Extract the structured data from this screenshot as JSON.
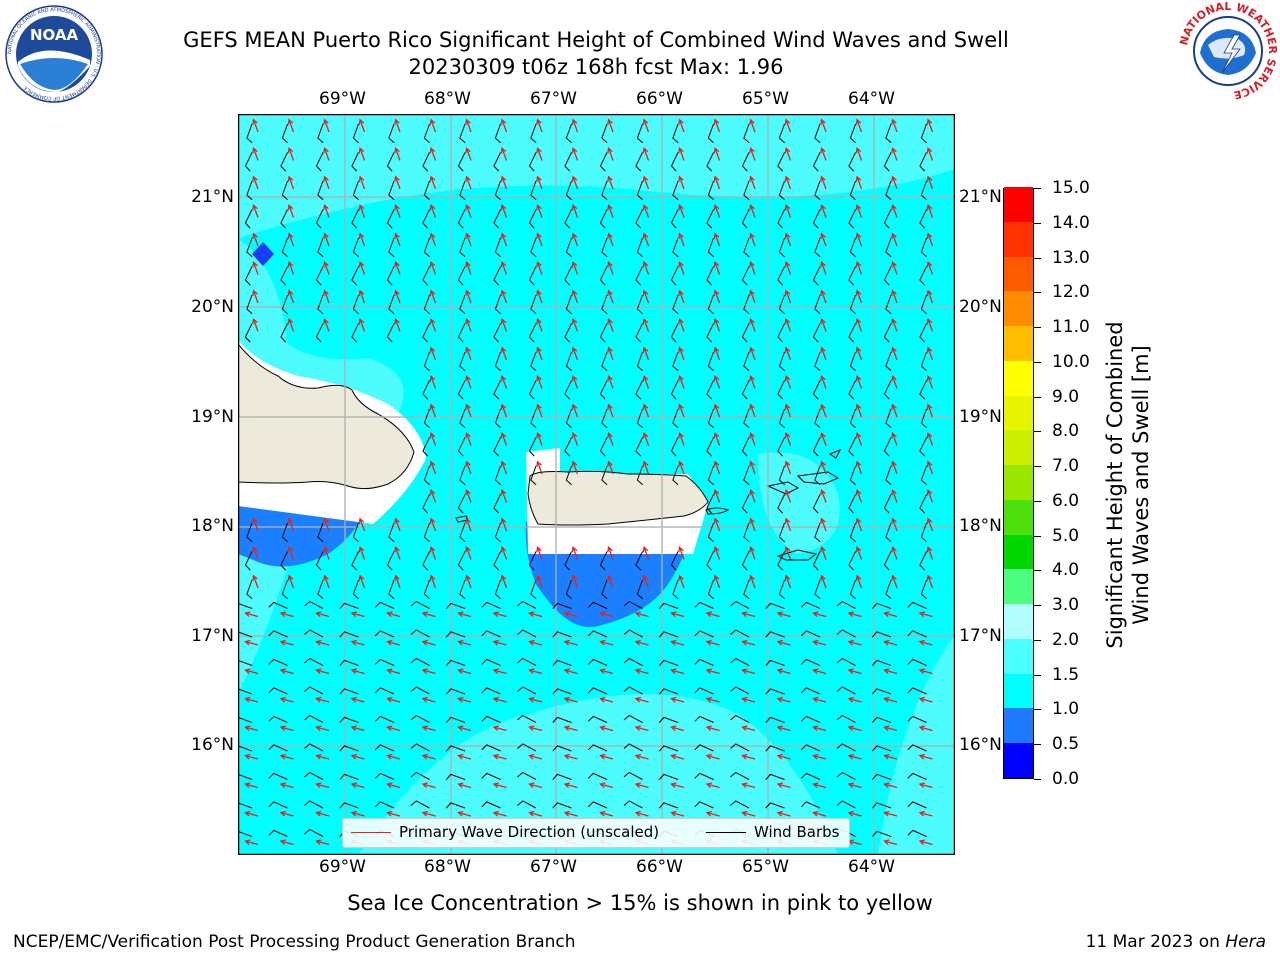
{
  "header": {
    "title_line1": "GEFS MEAN Puerto Rico Significant Height of Combined Wind Waves and Swell",
    "title_line2": "20230309 t06z 168h fcst   Max: 1.96"
  },
  "logos": {
    "noaa": {
      "text": "NOAA",
      "ring_text": "NATIONAL OCEANIC AND ATMOSPHERIC ADMINISTRATION · U.S. DEPARTMENT OF COMMERCE"
    },
    "nws": {
      "ring_text": "NATIONAL WEATHER SERVICE"
    }
  },
  "map": {
    "lon_labels": [
      "69°W",
      "68°W",
      "67°W",
      "66°W",
      "65°W",
      "64°W"
    ],
    "lat_labels": [
      "21°N",
      "20°N",
      "19°N",
      "18°N",
      "17°N",
      "16°N"
    ],
    "legend": {
      "primary_wave": "Primary Wave Direction (unscaled)",
      "wind_barbs": "Wind Barbs",
      "primary_wave_color": "#e8211b",
      "wind_barb_color": "#000000"
    },
    "colors": {
      "ocean": "#00ffff",
      "band_1_5_2": "#4dfcfc",
      "band_0_5_1": "#1a80ff",
      "band_0_0_5": "#1a3cf5",
      "land": "#eeeadb",
      "grid": "#b0b0b0"
    }
  },
  "colorbar": {
    "label_line1": "Significant Height of Combined",
    "label_line2": "Wind Waves and Swell [m]",
    "ticks": [
      "0.0",
      "0.5",
      "1.0",
      "1.5",
      "2.0",
      "3.0",
      "4.0",
      "5.0",
      "6.0",
      "7.0",
      "8.0",
      "9.0",
      "10.0",
      "11.0",
      "12.0",
      "13.0",
      "14.0",
      "15.0"
    ],
    "colors": [
      "#0000ff",
      "#1e7bff",
      "#00ffff",
      "#4dffff",
      "#b3ffff",
      "#4dff80",
      "#00d800",
      "#4ee00c",
      "#99e600",
      "#ccf000",
      "#e8f500",
      "#ffff00",
      "#ffbf00",
      "#ff8c00",
      "#ff5a00",
      "#ff3300",
      "#ff0000"
    ]
  },
  "footer": {
    "note": "Sea Ice Concentration > 15% is shown in pink to yellow",
    "credit": "NCEP/EMC/Verification Post Processing Product Generation Branch",
    "date": "11 Mar 2023 on ",
    "machine": "Hera"
  }
}
